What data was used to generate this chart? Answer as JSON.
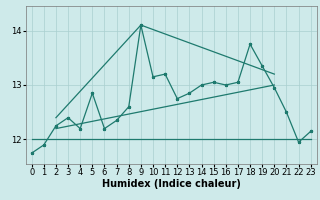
{
  "xlabel": "Humidex (Indice chaleur)",
  "background_color": "#ceeaea",
  "grid_color": "#aacfcf",
  "line_color": "#1e7a6e",
  "xlim": [
    -0.5,
    23.5
  ],
  "ylim": [
    11.55,
    14.45
  ],
  "yticks": [
    12,
    13,
    14
  ],
  "xticks": [
    0,
    1,
    2,
    3,
    4,
    5,
    6,
    7,
    8,
    9,
    10,
    11,
    12,
    13,
    14,
    15,
    16,
    17,
    18,
    19,
    20,
    21,
    22,
    23
  ],
  "series1_x": [
    0,
    1,
    2,
    3,
    4,
    5,
    6,
    7,
    8,
    9,
    10,
    11,
    12,
    13,
    14,
    15,
    16,
    17,
    18,
    19,
    20,
    21,
    22,
    23
  ],
  "series1_y": [
    11.75,
    11.9,
    12.25,
    12.4,
    12.2,
    12.85,
    12.2,
    12.35,
    12.6,
    14.1,
    13.15,
    13.2,
    12.75,
    12.85,
    13.0,
    13.05,
    13.0,
    13.05,
    13.75,
    13.35,
    12.95,
    12.5,
    11.95,
    12.15
  ],
  "series2_x": [
    0,
    23
  ],
  "series2_y": [
    12.0,
    12.0
  ],
  "series3_x": [
    2,
    9,
    20
  ],
  "series3_y": [
    12.4,
    14.1,
    13.2
  ],
  "series4_x": [
    2,
    20
  ],
  "series4_y": [
    12.2,
    13.0
  ],
  "font_size_label": 7,
  "font_size_tick": 6
}
